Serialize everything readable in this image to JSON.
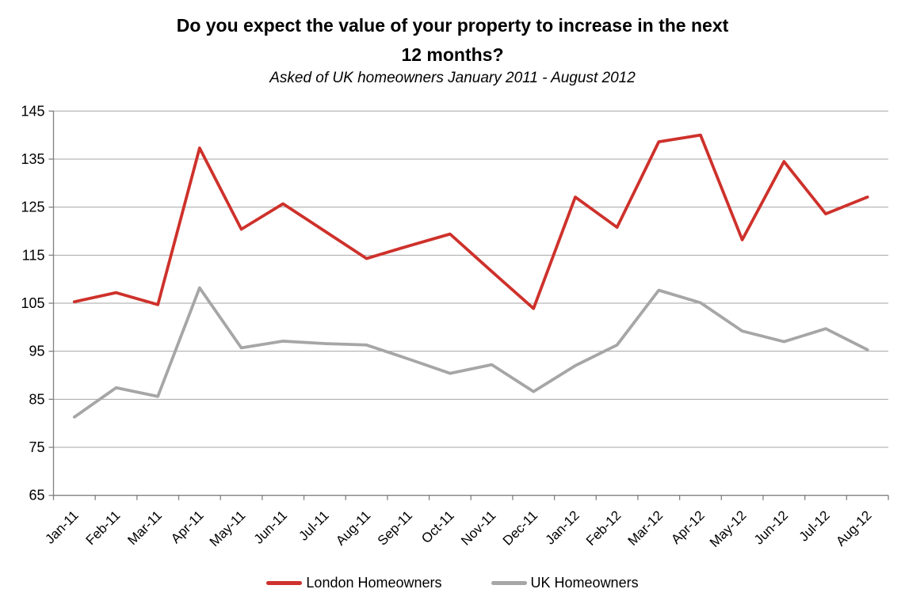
{
  "title": {
    "line1": "Do you expect the value of your property to increase in the next",
    "line2": "12 months?"
  },
  "subtitle": "Asked of UK homeowners January 2011 - August 2012",
  "chart_data": {
    "type": "line",
    "categories": [
      "Jan-11",
      "Feb-11",
      "Mar-11",
      "Apr-11",
      "May-11",
      "Jun-11",
      "Jul-11",
      "Aug-11",
      "Sep-11",
      "Oct-11",
      "Nov-11",
      "Dec-11",
      "Jan-12",
      "Feb-12",
      "Mar-12",
      "Apr-12",
      "May-12",
      "Jun-12",
      "Jul-12",
      "Aug-12"
    ],
    "series": [
      {
        "name": "London Homeowners",
        "color": "#CE312B",
        "values": [
          105.3,
          107.2,
          104.7,
          137.3,
          120.4,
          125.7,
          120.0,
          114.3,
          116.9,
          119.4,
          111.6,
          103.9,
          127.1,
          120.8,
          138.6,
          140.0,
          118.2,
          134.5,
          123.6,
          127.1
        ]
      },
      {
        "name": "UK Homeowners",
        "color": "#A6A6A6",
        "values": [
          81.3,
          87.4,
          85.6,
          108.2,
          95.7,
          97.1,
          96.6,
          96.3,
          93.4,
          90.4,
          92.2,
          86.6,
          92.0,
          96.3,
          107.7,
          105.1,
          99.2,
          97.0,
          99.7,
          95.3
        ]
      }
    ],
    "xlabel": "",
    "ylabel": "",
    "ylim": [
      65,
      145
    ],
    "ytick_step": 10,
    "grid": true,
    "legend_position": "bottom"
  },
  "style": {
    "grid_color": "#A6A6A6",
    "axis_color": "#808080",
    "text_color": "#000000",
    "background": "#FFFFFF"
  }
}
